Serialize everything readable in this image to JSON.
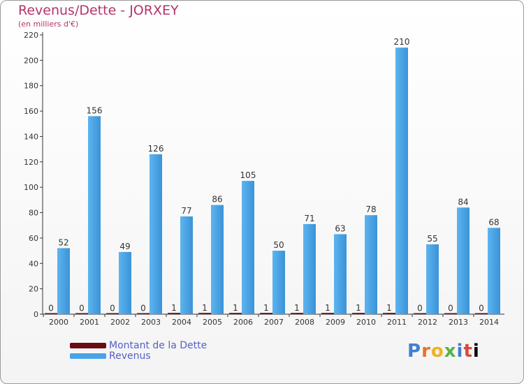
{
  "header": {
    "title": "Revenus/Dette - JORXEY",
    "subtitle": "(en milliers d'€)"
  },
  "chart_data": {
    "type": "bar",
    "categories": [
      "2000",
      "2001",
      "2002",
      "2003",
      "2004",
      "2005",
      "2006",
      "2007",
      "2008",
      "2009",
      "2010",
      "2011",
      "2012",
      "2013",
      "2014"
    ],
    "series": [
      {
        "name": "Montant de la Dette",
        "color": "#6b0b12",
        "values": [
          0,
          0,
          0,
          0,
          1,
          1,
          1,
          1,
          1,
          1,
          1,
          1,
          0,
          0,
          0
        ]
      },
      {
        "name": "Revenus",
        "color": "#4aa3e6",
        "values": [
          52,
          156,
          49,
          126,
          77,
          86,
          105,
          50,
          71,
          63,
          78,
          210,
          55,
          84,
          68
        ]
      }
    ],
    "ylim": [
      0,
      220
    ],
    "yticks": [
      0,
      20,
      40,
      60,
      80,
      100,
      120,
      140,
      160,
      180,
      200,
      220
    ],
    "grid": false,
    "legend": "bottom-left"
  },
  "logo": {
    "text": "Proxiti"
  }
}
